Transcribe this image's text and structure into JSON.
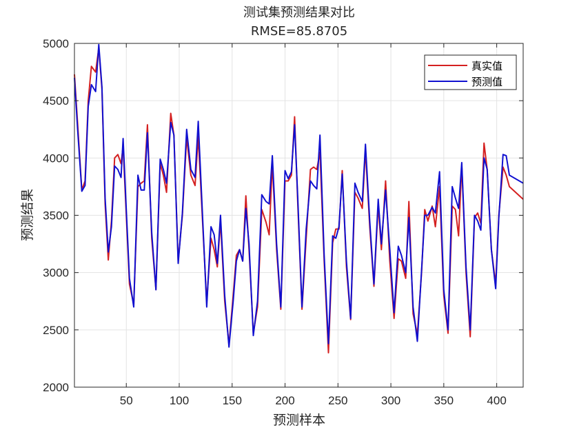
{
  "chart_data": {
    "type": "line",
    "title": "测试集预测结果对比",
    "subtitle": "RMSE=85.8705",
    "xlabel": "预测样本",
    "ylabel": "预测结果",
    "xlim": [
      1,
      425
    ],
    "ylim": [
      2000,
      5000
    ],
    "x_ticks": [
      50,
      100,
      150,
      200,
      250,
      300,
      350,
      400
    ],
    "y_ticks": [
      2000,
      2500,
      3000,
      3500,
      4000,
      4500,
      5000
    ],
    "grid": true,
    "legend_position": "top-right",
    "colors": {
      "real": "#d42020",
      "pred": "#1010d0",
      "grid": "#e3e3e3",
      "axis": "#262626"
    },
    "series": [
      {
        "name": "真实值",
        "key": "real",
        "points": [
          [
            1,
            4730
          ],
          [
            4,
            4300
          ],
          [
            8,
            3720
          ],
          [
            11,
            3800
          ],
          [
            14,
            4500
          ],
          [
            17,
            4800
          ],
          [
            21,
            4750
          ],
          [
            24,
            4960
          ],
          [
            27,
            4600
          ],
          [
            30,
            3600
          ],
          [
            33,
            3110
          ],
          [
            36,
            3450
          ],
          [
            39,
            4000
          ],
          [
            42,
            4030
          ],
          [
            45,
            3950
          ],
          [
            47,
            4100
          ],
          [
            50,
            3500
          ],
          [
            53,
            2900
          ],
          [
            57,
            2720
          ],
          [
            61,
            3750
          ],
          [
            64,
            3780
          ],
          [
            67,
            3800
          ],
          [
            70,
            4290
          ],
          [
            74,
            3300
          ],
          [
            78,
            2850
          ],
          [
            82,
            3950
          ],
          [
            85,
            3850
          ],
          [
            88,
            3700
          ],
          [
            92,
            4390
          ],
          [
            95,
            4200
          ],
          [
            99,
            3100
          ],
          [
            103,
            3500
          ],
          [
            107,
            4180
          ],
          [
            111,
            3850
          ],
          [
            115,
            3760
          ],
          [
            118,
            4190
          ],
          [
            122,
            3450
          ],
          [
            126,
            2740
          ],
          [
            130,
            3300
          ],
          [
            133,
            3200
          ],
          [
            136,
            3050
          ],
          [
            139,
            3450
          ],
          [
            143,
            2750
          ],
          [
            147,
            2370
          ],
          [
            151,
            2800
          ],
          [
            154,
            3150
          ],
          [
            157,
            3200
          ],
          [
            160,
            3100
          ],
          [
            163,
            3670
          ],
          [
            166,
            3200
          ],
          [
            170,
            2470
          ],
          [
            174,
            2700
          ],
          [
            178,
            3550
          ],
          [
            182,
            3440
          ],
          [
            185,
            3330
          ],
          [
            188,
            3950
          ],
          [
            192,
            3200
          ],
          [
            196,
            2680
          ],
          [
            200,
            3800
          ],
          [
            203,
            3800
          ],
          [
            206,
            3850
          ],
          [
            209,
            4360
          ],
          [
            212,
            3600
          ],
          [
            216,
            2680
          ],
          [
            220,
            3300
          ],
          [
            224,
            3900
          ],
          [
            227,
            3920
          ],
          [
            230,
            3900
          ],
          [
            233,
            4050
          ],
          [
            237,
            3100
          ],
          [
            241,
            2300
          ],
          [
            245,
            3260
          ],
          [
            248,
            3380
          ],
          [
            251,
            3380
          ],
          [
            254,
            3890
          ],
          [
            258,
            3050
          ],
          [
            262,
            2590
          ],
          [
            266,
            3700
          ],
          [
            269,
            3650
          ],
          [
            273,
            3560
          ],
          [
            276,
            4070
          ],
          [
            280,
            3400
          ],
          [
            284,
            2880
          ],
          [
            288,
            3590
          ],
          [
            291,
            3200
          ],
          [
            295,
            3800
          ],
          [
            299,
            3100
          ],
          [
            303,
            2600
          ],
          [
            307,
            3120
          ],
          [
            310,
            3100
          ],
          [
            314,
            2950
          ],
          [
            317,
            3620
          ],
          [
            321,
            2640
          ],
          [
            325,
            2460
          ],
          [
            329,
            3000
          ],
          [
            332,
            3550
          ],
          [
            335,
            3450
          ],
          [
            339,
            3580
          ],
          [
            342,
            3400
          ],
          [
            346,
            3750
          ],
          [
            350,
            2800
          ],
          [
            354,
            2470
          ],
          [
            358,
            3580
          ],
          [
            361,
            3550
          ],
          [
            364,
            3320
          ],
          [
            367,
            3940
          ],
          [
            371,
            3000
          ],
          [
            375,
            2440
          ],
          [
            379,
            3480
          ],
          [
            382,
            3520
          ],
          [
            385,
            3430
          ],
          [
            388,
            4130
          ],
          [
            391,
            3900
          ],
          [
            395,
            3200
          ],
          [
            399,
            2900
          ],
          [
            402,
            3500
          ],
          [
            406,
            3920
          ],
          [
            409,
            3850
          ],
          [
            412,
            3750
          ],
          [
            425,
            3640
          ]
        ]
      },
      {
        "name": "预测值",
        "key": "pred",
        "points": [
          [
            1,
            4700
          ],
          [
            4,
            4250
          ],
          [
            8,
            3710
          ],
          [
            11,
            3760
          ],
          [
            14,
            4450
          ],
          [
            17,
            4640
          ],
          [
            21,
            4580
          ],
          [
            24,
            4990
          ],
          [
            27,
            4620
          ],
          [
            30,
            3650
          ],
          [
            33,
            3180
          ],
          [
            36,
            3400
          ],
          [
            39,
            3930
          ],
          [
            42,
            3900
          ],
          [
            45,
            3830
          ],
          [
            47,
            4170
          ],
          [
            50,
            3550
          ],
          [
            53,
            2950
          ],
          [
            57,
            2700
          ],
          [
            61,
            3850
          ],
          [
            64,
            3720
          ],
          [
            67,
            3720
          ],
          [
            70,
            4220
          ],
          [
            74,
            3350
          ],
          [
            78,
            2850
          ],
          [
            82,
            3990
          ],
          [
            85,
            3900
          ],
          [
            88,
            3780
          ],
          [
            92,
            4310
          ],
          [
            95,
            4200
          ],
          [
            99,
            3080
          ],
          [
            103,
            3520
          ],
          [
            107,
            4250
          ],
          [
            111,
            3900
          ],
          [
            115,
            3830
          ],
          [
            118,
            4320
          ],
          [
            122,
            3500
          ],
          [
            126,
            2700
          ],
          [
            130,
            3400
          ],
          [
            133,
            3330
          ],
          [
            136,
            3080
          ],
          [
            139,
            3500
          ],
          [
            143,
            2800
          ],
          [
            147,
            2350
          ],
          [
            151,
            2750
          ],
          [
            154,
            3100
          ],
          [
            157,
            3200
          ],
          [
            160,
            3100
          ],
          [
            163,
            3560
          ],
          [
            166,
            3250
          ],
          [
            170,
            2450
          ],
          [
            174,
            2750
          ],
          [
            178,
            3680
          ],
          [
            182,
            3620
          ],
          [
            185,
            3600
          ],
          [
            188,
            4020
          ],
          [
            192,
            3250
          ],
          [
            196,
            2700
          ],
          [
            200,
            3890
          ],
          [
            203,
            3820
          ],
          [
            206,
            3880
          ],
          [
            209,
            4290
          ],
          [
            212,
            3650
          ],
          [
            216,
            2700
          ],
          [
            220,
            3380
          ],
          [
            224,
            3800
          ],
          [
            227,
            3760
          ],
          [
            230,
            3730
          ],
          [
            233,
            4200
          ],
          [
            237,
            3150
          ],
          [
            241,
            2380
          ],
          [
            245,
            3320
          ],
          [
            248,
            3300
          ],
          [
            251,
            3400
          ],
          [
            254,
            3860
          ],
          [
            258,
            3100
          ],
          [
            262,
            2600
          ],
          [
            266,
            3780
          ],
          [
            269,
            3700
          ],
          [
            273,
            3620
          ],
          [
            276,
            4120
          ],
          [
            280,
            3450
          ],
          [
            284,
            2900
          ],
          [
            288,
            3640
          ],
          [
            291,
            3250
          ],
          [
            295,
            3720
          ],
          [
            299,
            3200
          ],
          [
            303,
            2650
          ],
          [
            307,
            3230
          ],
          [
            310,
            3150
          ],
          [
            314,
            3000
          ],
          [
            317,
            3480
          ],
          [
            321,
            2700
          ],
          [
            325,
            2400
          ],
          [
            329,
            3020
          ],
          [
            332,
            3500
          ],
          [
            335,
            3500
          ],
          [
            339,
            3570
          ],
          [
            342,
            3520
          ],
          [
            346,
            3880
          ],
          [
            350,
            2850
          ],
          [
            354,
            2500
          ],
          [
            358,
            3750
          ],
          [
            361,
            3650
          ],
          [
            364,
            3560
          ],
          [
            367,
            3960
          ],
          [
            371,
            3050
          ],
          [
            375,
            2500
          ],
          [
            379,
            3500
          ],
          [
            382,
            3450
          ],
          [
            385,
            3370
          ],
          [
            388,
            4000
          ],
          [
            391,
            3900
          ],
          [
            395,
            3200
          ],
          [
            399,
            2860
          ],
          [
            402,
            3480
          ],
          [
            406,
            4030
          ],
          [
            409,
            4020
          ],
          [
            412,
            3850
          ],
          [
            425,
            3780
          ]
        ]
      }
    ]
  }
}
